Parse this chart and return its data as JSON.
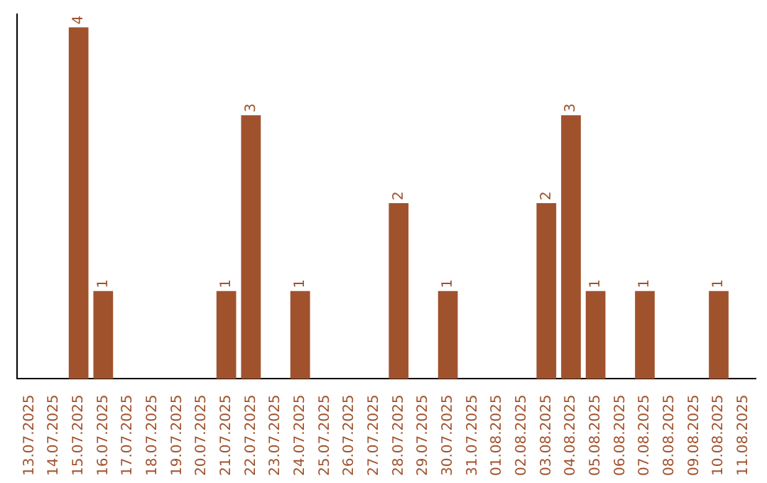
{
  "chart_data": {
    "type": "bar",
    "categories": [
      "13.07.2025",
      "14.07.2025",
      "15.07.2025",
      "16.07.2025",
      "17.07.2025",
      "18.07.2025",
      "19.07.2025",
      "20.07.2025",
      "21.07.2025",
      "22.07.2025",
      "23.07.2025",
      "24.07.2025",
      "25.07.2025",
      "26.07.2025",
      "27.07.2025",
      "28.07.2025",
      "29.07.2025",
      "30.07.2025",
      "31.07.2025",
      "01.08.2025",
      "02.08.2025",
      "03.08.2025",
      "04.08.2025",
      "05.08.2025",
      "06.08.2025",
      "07.08.2025",
      "08.08.2025",
      "09.08.2025",
      "10.08.2025",
      "11.08.2025"
    ],
    "values": [
      0,
      0,
      4,
      1,
      0,
      0,
      0,
      0,
      1,
      3,
      0,
      1,
      0,
      0,
      0,
      2,
      0,
      1,
      0,
      0,
      0,
      2,
      3,
      1,
      0,
      1,
      0,
      0,
      1,
      0
    ],
    "value_labels": [
      null,
      null,
      "4",
      "1",
      null,
      null,
      null,
      null,
      "1",
      "3",
      null,
      "1",
      null,
      null,
      null,
      "2",
      null,
      "1",
      null,
      null,
      null,
      "2",
      "3",
      "1",
      null,
      "1",
      null,
      null,
      "1",
      null
    ],
    "color": "#a0522d",
    "ylim": [
      0,
      4.15
    ],
    "tick_labels": "x"
  }
}
